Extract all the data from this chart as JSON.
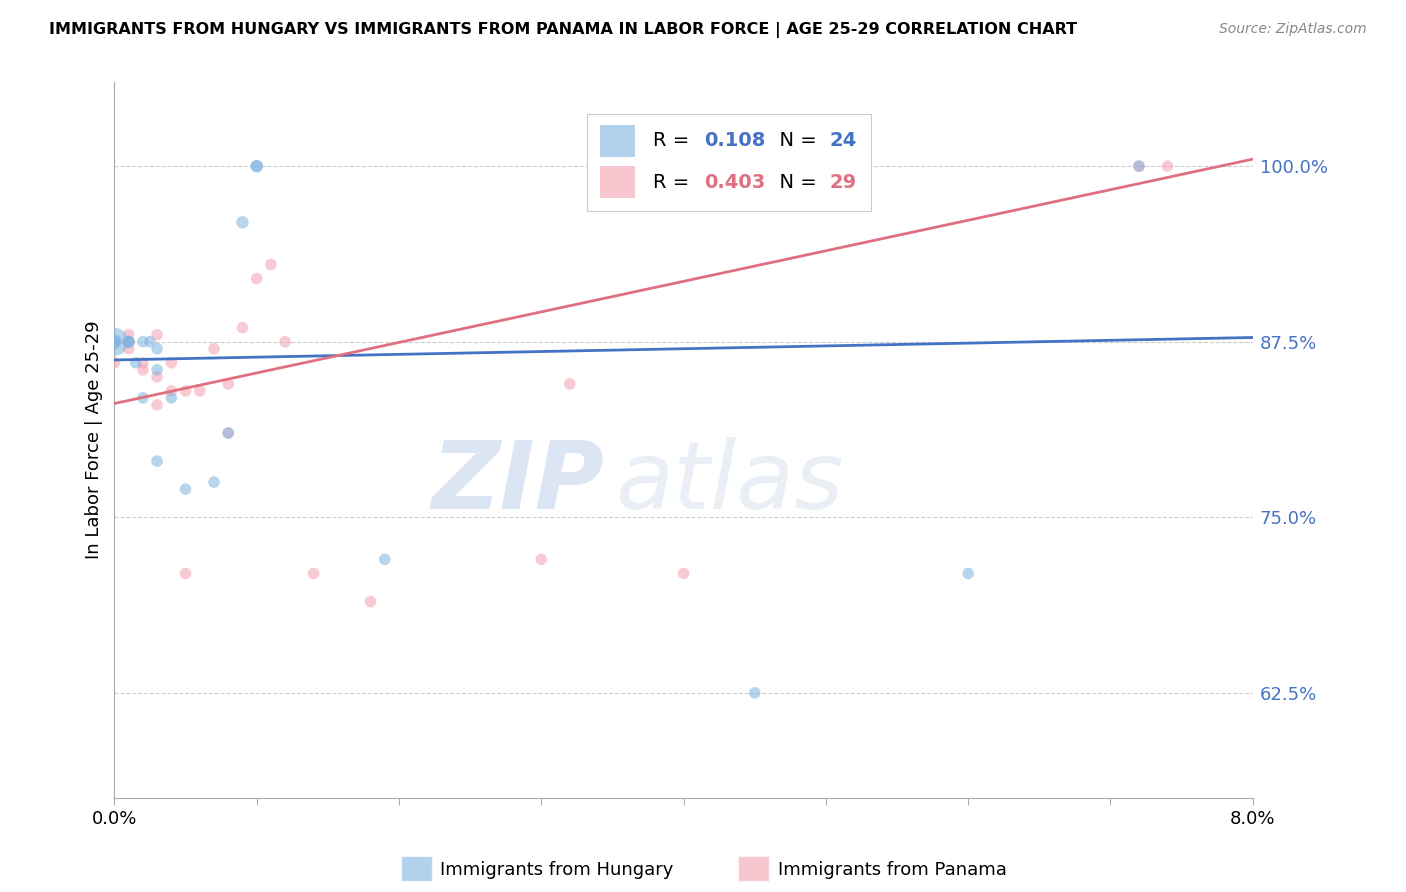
{
  "title": "IMMIGRANTS FROM HUNGARY VS IMMIGRANTS FROM PANAMA IN LABOR FORCE | AGE 25-29 CORRELATION CHART",
  "source": "Source: ZipAtlas.com",
  "ylabel": "In Labor Force | Age 25-29",
  "yticks": [
    0.625,
    0.75,
    0.875,
    1.0
  ],
  "ytick_labels": [
    "62.5%",
    "75.0%",
    "87.5%",
    "100.0%"
  ],
  "xlim": [
    0.0,
    0.08
  ],
  "ylim": [
    0.55,
    1.06
  ],
  "hungary_color": "#7eb3e0",
  "panama_color": "#f4a0b0",
  "hungary_R": 0.108,
  "hungary_N": 24,
  "panama_R": 0.403,
  "panama_N": 29,
  "hungary_line_color": "#4472c4",
  "panama_line_color": "#e07080",
  "background_color": "#ffffff",
  "grid_color": "#cccccc",
  "watermark_zip": "ZIP",
  "watermark_atlas": "atlas",
  "hungary_x": [
    0.0,
    0.0,
    0.0,
    0.001,
    0.001,
    0.001,
    0.0015,
    0.002,
    0.002,
    0.0025,
    0.003,
    0.003,
    0.003,
    0.004,
    0.005,
    0.007,
    0.008,
    0.009,
    0.01,
    0.01,
    0.019,
    0.045,
    0.06,
    0.072
  ],
  "hungary_y": [
    0.875,
    0.875,
    0.875,
    0.875,
    0.875,
    0.875,
    0.86,
    0.835,
    0.875,
    0.875,
    0.87,
    0.855,
    0.79,
    0.835,
    0.77,
    0.775,
    0.81,
    0.96,
    1.0,
    1.0,
    0.72,
    0.625,
    0.71,
    1.0
  ],
  "hungary_size": [
    400,
    120,
    70,
    80,
    70,
    70,
    70,
    70,
    70,
    70,
    70,
    70,
    70,
    70,
    70,
    70,
    70,
    80,
    80,
    80,
    70,
    70,
    70,
    70
  ],
  "panama_x": [
    0.0,
    0.0,
    0.001,
    0.001,
    0.001,
    0.002,
    0.002,
    0.003,
    0.003,
    0.003,
    0.004,
    0.004,
    0.005,
    0.005,
    0.006,
    0.007,
    0.008,
    0.008,
    0.009,
    0.01,
    0.011,
    0.012,
    0.014,
    0.018,
    0.03,
    0.032,
    0.04,
    0.072,
    0.074
  ],
  "panama_y": [
    0.875,
    0.86,
    0.87,
    0.88,
    0.875,
    0.86,
    0.855,
    0.88,
    0.85,
    0.83,
    0.86,
    0.84,
    0.84,
    0.71,
    0.84,
    0.87,
    0.845,
    0.81,
    0.885,
    0.92,
    0.93,
    0.875,
    0.71,
    0.69,
    0.72,
    0.845,
    0.71,
    1.0,
    1.0
  ],
  "panama_size": [
    70,
    70,
    70,
    70,
    70,
    70,
    70,
    70,
    70,
    70,
    70,
    70,
    70,
    70,
    70,
    70,
    70,
    70,
    70,
    70,
    70,
    70,
    70,
    70,
    70,
    70,
    70,
    70,
    70
  ],
  "hungary_line_x": [
    0.0,
    0.08
  ],
  "hungary_line_y": [
    0.862,
    0.878
  ],
  "panama_line_x": [
    0.0,
    0.08
  ],
  "panama_line_y": [
    0.831,
    1.005
  ]
}
